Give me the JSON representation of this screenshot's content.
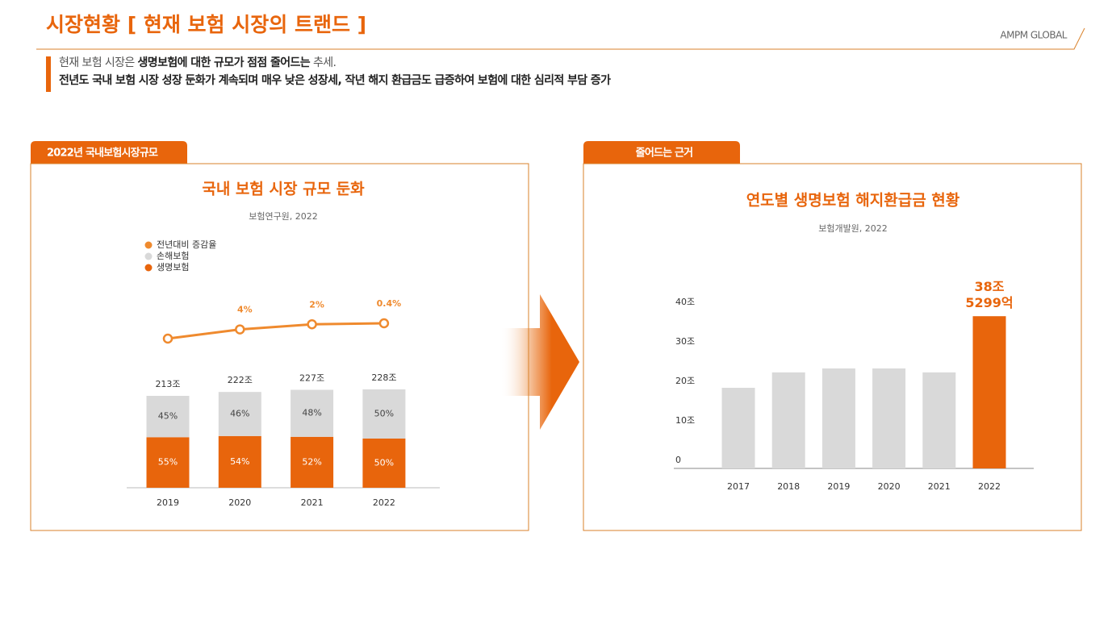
{
  "header": {
    "title": "시장현황 [ 현재 보험 시장의 트랜드 ]",
    "brand": "AMPM GLOBAL",
    "lines": [
      [
        {
          "text": "현재 보험 시장은 ",
          "bold": false
        },
        {
          "text": "생명보험에 대한 규모가 점점 줄어드는",
          "bold": true
        },
        {
          "text": " 추세.",
          "bold": false
        }
      ],
      [
        {
          "text": "전년도 국내 보험 시장 성장 둔화가 계속되며 매우 낮은 성장세, 작년 해지 환급금도 급증하여 보험에 대한 심리적 부담 증가",
          "bold": true
        }
      ]
    ]
  },
  "chart_data": [
    {
      "type": "stacked_bar_line",
      "tab": "2022년 국내보험시장규모",
      "title": "국내 보험 시장 규모 둔화",
      "subtitle": "보험연구원, 2022",
      "categories": [
        "2019",
        "2020",
        "2021",
        "2022"
      ],
      "totals": {
        "values": [
          213,
          222,
          227,
          228
        ],
        "value_labels": [
          "213조",
          "222조",
          "227조",
          "228조"
        ]
      },
      "series": [
        {
          "name": "전년대비 증감율",
          "type": "line",
          "color": "#ef8a2e",
          "values": [
            null,
            4,
            2,
            0.4
          ],
          "value_labels": [
            null,
            "4%",
            "2%",
            "0.4%"
          ]
        },
        {
          "name": "손해보험",
          "type": "bar",
          "color": "#d9d9d9",
          "values": [
            45,
            46,
            48,
            50
          ],
          "value_labels": [
            "45%",
            "46%",
            "48%",
            "50%"
          ]
        },
        {
          "name": "생명보험",
          "type": "bar",
          "color": "#e8650c",
          "values": [
            55,
            54,
            52,
            50
          ],
          "value_labels": [
            "55%",
            "54%",
            "52%",
            "50%"
          ]
        }
      ]
    },
    {
      "type": "bar",
      "tab": "줄어드는 근거",
      "title": "연도별 생명보험 해지환급금 현황",
      "subtitle": "보험개발원, 2022",
      "categories": [
        "2017",
        "2018",
        "2019",
        "2020",
        "2021",
        "2022"
      ],
      "values": [
        20.4,
        24.3,
        25.3,
        25.3,
        24.3,
        38.5299
      ],
      "value_labels": [
        null,
        null,
        null,
        null,
        null,
        "38조\n5299억"
      ],
      "colors": [
        "#d9d9d9",
        "#d9d9d9",
        "#d9d9d9",
        "#d9d9d9",
        "#d9d9d9",
        "#e8650c"
      ],
      "ylim": [
        0,
        40
      ],
      "yticks": [
        0,
        {
          "value": 10,
          "label": "10조"
        },
        {
          "value": 20,
          "label": "20조"
        },
        {
          "value": 30,
          "label": "30조"
        },
        {
          "value": 40,
          "label": "40조"
        }
      ]
    }
  ]
}
